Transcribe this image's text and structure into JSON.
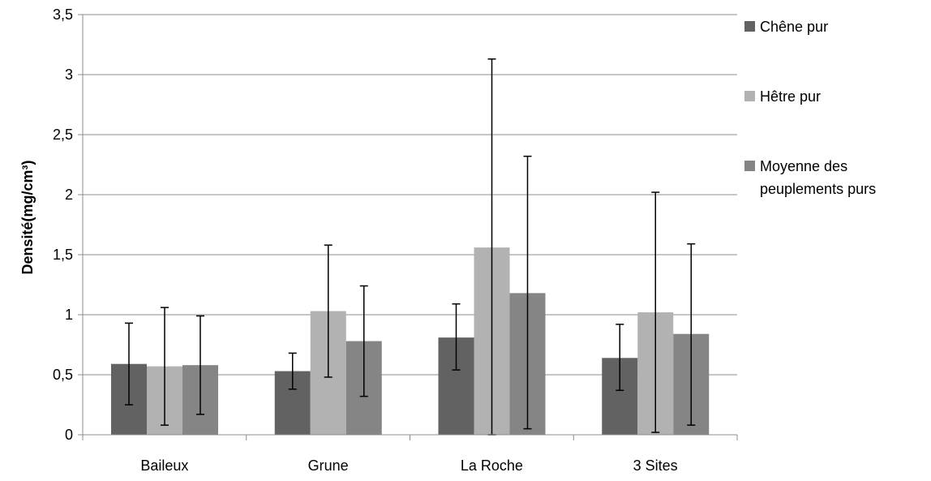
{
  "chart_data": {
    "type": "bar",
    "ylabel": "Densité(mg/cm³)",
    "ylim": [
      0,
      3.5
    ],
    "yticks": [
      0,
      0.5,
      1,
      1.5,
      2,
      2.5,
      3,
      3.5
    ],
    "yticklabels": [
      "0",
      "0,5",
      "1",
      "1,5",
      "2",
      "2,5",
      "3",
      "3,5"
    ],
    "categories": [
      "Baileux",
      "Grune",
      "La Roche",
      "3 Sites"
    ],
    "grid": true,
    "legend_position": "right",
    "series": [
      {
        "name": "Chêne pur",
        "color": "#626262",
        "values": [
          0.59,
          0.53,
          0.81,
          0.64
        ],
        "error_low": [
          0.25,
          0.38,
          0.54,
          0.37
        ],
        "error_high": [
          0.93,
          0.68,
          1.09,
          0.92
        ]
      },
      {
        "name": "Hêtre pur",
        "color": "#b2b2b2",
        "values": [
          0.57,
          1.03,
          1.56,
          1.02
        ],
        "error_low": [
          0.08,
          0.48,
          0.0,
          0.02
        ],
        "error_high": [
          1.06,
          1.58,
          3.13,
          2.02
        ]
      },
      {
        "name": "Moyenne des peuplements purs",
        "legend_lines": [
          "Moyenne des",
          "peuplements purs"
        ],
        "color": "#858585",
        "values": [
          0.58,
          0.78,
          1.18,
          0.84
        ],
        "error_low": [
          0.17,
          0.32,
          0.05,
          0.08
        ],
        "error_high": [
          0.99,
          1.24,
          2.32,
          1.59
        ]
      }
    ]
  }
}
